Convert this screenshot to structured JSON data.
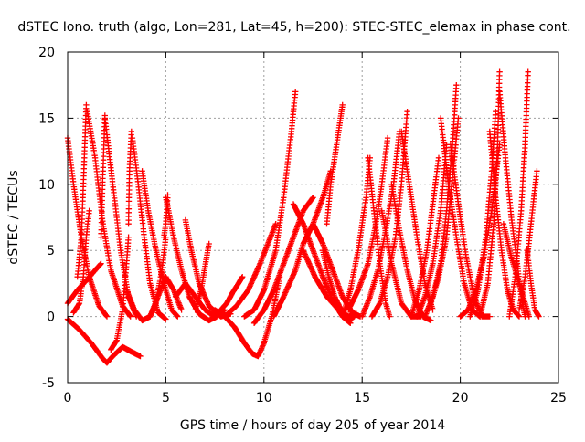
{
  "chart_data": {
    "type": "scatter",
    "title": "dSTEC Iono. truth (algo, Lon=281, Lat=45, h=200): STEC-STEC_elemax in phase cont.",
    "xlabel": "GPS time / hours of day 205 of year 2014",
    "ylabel": "dSTEC  / TECUs",
    "xlim": [
      0,
      25
    ],
    "ylim": [
      -5,
      20
    ],
    "xticks": [
      0,
      5,
      10,
      15,
      20,
      25
    ],
    "yticks": [
      -5,
      0,
      5,
      10,
      15,
      20
    ],
    "grid": true,
    "marker": "+",
    "colors": {
      "series": "#ff0000",
      "grid": "#a0a0a0",
      "axis": "#000000"
    },
    "series": [
      {
        "segments": [
          {
            "x": [
              0.0,
              0.3,
              0.7,
              1.1,
              1.6,
              2.0
            ],
            "y": [
              13.5,
              10.0,
              6.0,
              3.0,
              0.8,
              0.0
            ]
          },
          {
            "x": [
              0.0,
              0.6,
              1.2,
              1.8,
              2.0,
              2.3,
              2.8,
              3.3,
              3.7
            ],
            "y": [
              -0.2,
              -1.0,
              -2.0,
              -3.2,
              -3.5,
              -3.0,
              -2.3,
              -2.7,
              -3.0
            ]
          },
          {
            "x": [
              0.0,
              0.5,
              1.0,
              1.4,
              1.7
            ],
            "y": [
              1.0,
              2.0,
              2.8,
              3.5,
              4.0
            ]
          }
        ]
      },
      {
        "segments": [
          {
            "x": [
              0.3,
              0.6,
              0.8,
              0.95,
              1.1
            ],
            "y": [
              0.3,
              1.0,
              3.0,
              6.0,
              8.0
            ]
          },
          {
            "x": [
              0.5,
              0.7,
              0.85,
              0.95
            ],
            "y": [
              3.0,
              6.0,
              12.0,
              16.0
            ]
          },
          {
            "x": [
              1.0,
              1.4,
              1.8,
              2.2,
              2.8,
              3.2
            ],
            "y": [
              15.5,
              12.0,
              7.0,
              3.5,
              0.8,
              0.0
            ]
          },
          {
            "x": [
              1.7,
              1.8,
              1.9
            ],
            "y": [
              6.0,
              11.0,
              15.2
            ]
          },
          {
            "x": [
              1.9,
              2.3,
              2.7,
              3.1,
              3.5
            ],
            "y": [
              15.0,
              10.0,
              5.0,
              1.5,
              0.0
            ]
          }
        ]
      },
      {
        "segments": [
          {
            "x": [
              2.2,
              2.5,
              2.8,
              3.0,
              3.1
            ],
            "y": [
              -2.5,
              -1.8,
              0.5,
              4.0,
              6.0
            ]
          },
          {
            "x": [
              3.1,
              3.15,
              3.25
            ],
            "y": [
              7.0,
              11.0,
              14.0
            ]
          },
          {
            "x": [
              3.3,
              3.6,
              3.9,
              4.2,
              4.6,
              5.0
            ],
            "y": [
              13.5,
              10.0,
              6.0,
              2.5,
              0.3,
              -0.2
            ]
          },
          {
            "x": [
              3.8,
              4.1,
              4.5,
              4.9,
              5.3,
              5.6
            ],
            "y": [
              11.0,
              8.0,
              5.0,
              2.5,
              0.5,
              0.0
            ]
          },
          {
            "x": [
              3.0,
              3.4,
              3.8,
              4.2,
              4.6,
              5.0,
              5.4,
              5.8
            ],
            "y": [
              2.0,
              0.5,
              -0.3,
              0.0,
              1.5,
              3.0,
              2.0,
              0.5
            ]
          }
        ]
      },
      {
        "segments": [
          {
            "x": [
              4.2,
              4.5,
              4.8,
              5.0
            ],
            "y": [
              0.0,
              1.0,
              3.5,
              6.0
            ]
          },
          {
            "x": [
              4.9,
              5.0,
              5.1
            ],
            "y": [
              6.0,
              7.0,
              9.2
            ]
          },
          {
            "x": [
              5.0,
              5.4,
              5.8,
              6.2,
              6.7,
              7.2,
              7.6
            ],
            "y": [
              9.0,
              6.0,
              3.5,
              1.5,
              0.2,
              -0.3,
              0.0
            ]
          },
          {
            "x": [
              5.5,
              6.0,
              6.5,
              7.0,
              7.5,
              8.0
            ],
            "y": [
              1.5,
              2.5,
              1.5,
              0.5,
              0.0,
              0.5
            ]
          },
          {
            "x": [
              6.0,
              6.3,
              6.7,
              7.2,
              7.8,
              8.3
            ],
            "y": [
              7.3,
              5.0,
              2.5,
              0.8,
              0.0,
              0.2
            ]
          },
          {
            "x": [
              6.5,
              6.8,
              7.0,
              7.2
            ],
            "y": [
              0.5,
              2.0,
              3.8,
              5.5
            ]
          },
          {
            "x": [
              7.8,
              8.1,
              8.4,
              8.7,
              8.9
            ],
            "y": [
              0.5,
              1.0,
              1.8,
              2.5,
              3.0
            ]
          }
        ]
      },
      {
        "segments": [
          {
            "x": [
              7.5,
              8.0,
              8.5,
              9.0,
              9.4,
              9.7,
              10.0,
              10.4,
              10.8
            ],
            "y": [
              0.5,
              0.0,
              -0.8,
              -2.0,
              -2.8,
              -3.0,
              -2.0,
              0.0,
              3.0
            ]
          },
          {
            "x": [
              8.0,
              8.6,
              9.2,
              9.8,
              10.2,
              10.6
            ],
            "y": [
              0.0,
              0.8,
              2.0,
              4.0,
              5.5,
              7.0
            ]
          },
          {
            "x": [
              9.0,
              9.5,
              10.0,
              10.6,
              11.0,
              11.4,
              11.6
            ],
            "y": [
              0.0,
              0.5,
              2.0,
              5.0,
              9.0,
              14.0,
              17.0
            ]
          },
          {
            "x": [
              9.5,
              10.0,
              10.5,
              11.0,
              11.5,
              12.0,
              12.5
            ],
            "y": [
              -0.5,
              0.5,
              2.0,
              4.0,
              6.0,
              8.0,
              9.0
            ]
          },
          {
            "x": [
              10.5,
              11.0,
              11.6,
              12.0,
              12.5,
              13.0,
              13.4
            ],
            "y": [
              0.0,
              1.5,
              3.5,
              5.5,
              7.0,
              9.0,
              11.0
            ]
          }
        ]
      },
      {
        "segments": [
          {
            "x": [
              11.5,
              12.0,
              12.5,
              13.0,
              13.5,
              14.0,
              14.4
            ],
            "y": [
              8.5,
              7.0,
              5.0,
              3.0,
              1.2,
              0.0,
              -0.5
            ]
          },
          {
            "x": [
              12.0,
              12.6,
              13.2,
              13.8,
              14.3,
              14.7
            ],
            "y": [
              5.0,
              3.0,
              1.5,
              0.5,
              0.0,
              0.2
            ]
          },
          {
            "x": [
              12.5,
              13.0,
              13.5,
              14.0,
              14.5,
              14.9
            ],
            "y": [
              7.0,
              5.5,
              3.5,
              1.5,
              0.3,
              0.0
            ]
          },
          {
            "x": [
              13.0,
              13.3,
              13.6,
              14.0,
              14.3,
              14.6
            ],
            "y": [
              5.0,
              3.0,
              1.5,
              0.3,
              -0.3,
              0.0
            ]
          },
          {
            "x": [
              13.2,
              13.4,
              13.7,
              13.9,
              14.0
            ],
            "y": [
              7.0,
              10.0,
              13.0,
              15.0,
              16.0
            ]
          },
          {
            "x": [
              14.0,
              14.4,
              14.8,
              15.2,
              15.4
            ],
            "y": [
              0.0,
              2.0,
              5.0,
              9.0,
              12.0
            ]
          }
        ]
      },
      {
        "segments": [
          {
            "x": [
              14.3,
              14.8,
              15.3,
              15.7,
              16.0,
              16.3
            ],
            "y": [
              0.5,
              2.0,
              4.0,
              7.0,
              10.0,
              13.5
            ]
          },
          {
            "x": [
              15.0,
              15.4,
              15.8,
              16.2,
              16.6,
              16.9
            ],
            "y": [
              0.0,
              1.5,
              3.5,
              6.5,
              10.0,
              14.0
            ]
          },
          {
            "x": [
              15.5,
              15.9,
              16.3,
              16.7,
              17.0,
              17.3
            ],
            "y": [
              0.0,
              1.0,
              3.0,
              6.0,
              10.0,
              15.5
            ]
          },
          {
            "x": [
              15.3,
              15.6,
              15.9,
              16.2,
              16.4
            ],
            "y": [
              12.0,
              8.0,
              4.0,
              1.0,
              0.0
            ]
          },
          {
            "x": [
              16.0,
              16.5,
              17.0,
              17.5,
              18.0
            ],
            "y": [
              8.0,
              4.0,
              1.0,
              0.0,
              0.0
            ]
          },
          {
            "x": [
              16.5,
              16.9,
              17.3,
              17.7,
              18.1,
              18.5
            ],
            "y": [
              10.0,
              6.5,
              3.5,
              1.2,
              0.0,
              -0.3
            ]
          },
          {
            "x": [
              17.0,
              17.4,
              17.8,
              18.2,
              18.6
            ],
            "y": [
              14.0,
              10.0,
              6.0,
              2.5,
              0.5
            ]
          }
        ]
      },
      {
        "segments": [
          {
            "x": [
              17.5,
              17.9,
              18.3,
              18.6,
              18.9
            ],
            "y": [
              0.0,
              2.0,
              5.0,
              8.5,
              12.0
            ]
          },
          {
            "x": [
              17.8,
              18.2,
              18.6,
              19.0,
              19.3
            ],
            "y": [
              0.0,
              1.5,
              4.0,
              8.0,
              13.0
            ]
          },
          {
            "x": [
              18.2,
              18.6,
              19.0,
              19.3,
              19.6,
              19.8
            ],
            "y": [
              0.0,
              1.5,
              4.0,
              8.0,
              13.0,
              17.5
            ]
          },
          {
            "x": [
              18.5,
              18.9,
              19.3,
              19.6,
              19.9
            ],
            "y": [
              1.0,
              3.0,
              6.0,
              10.5,
              15.0
            ]
          },
          {
            "x": [
              19.0,
              19.4,
              19.8,
              20.2,
              20.6,
              21.0
            ],
            "y": [
              15.0,
              10.0,
              6.0,
              2.5,
              0.5,
              0.0
            ]
          },
          {
            "x": [
              19.5,
              19.9,
              20.3,
              20.7,
              21.1,
              21.5
            ],
            "y": [
              13.0,
              8.5,
              4.5,
              1.5,
              0.0,
              0.0
            ]
          },
          {
            "x": [
              20.0,
              20.4,
              20.8,
              21.2,
              21.6,
              22.0
            ],
            "y": [
              0.0,
              0.5,
              2.0,
              4.5,
              8.0,
              13.0
            ]
          }
        ]
      },
      {
        "segments": [
          {
            "x": [
              20.5,
              20.9,
              21.3,
              21.6,
              21.8
            ],
            "y": [
              0.0,
              2.0,
              6.0,
              11.0,
              15.5
            ]
          },
          {
            "x": [
              21.0,
              21.4,
              21.7,
              21.9,
              22.0
            ],
            "y": [
              0.0,
              2.5,
              7.0,
              13.0,
              18.5
            ]
          },
          {
            "x": [
              21.5,
              21.8,
              22.1,
              22.4,
              22.7,
              23.0
            ],
            "y": [
              14.0,
              9.0,
              5.0,
              2.0,
              0.5,
              0.0
            ]
          },
          {
            "x": [
              22.0,
              22.3,
              22.6,
              22.9,
              23.1,
              23.3
            ],
            "y": [
              17.0,
              12.0,
              7.5,
              4.0,
              1.5,
              0.0
            ]
          },
          {
            "x": [
              22.2,
              22.6,
              23.0,
              23.3,
              23.5
            ],
            "y": [
              7.0,
              4.5,
              2.5,
              1.0,
              0.0
            ]
          },
          {
            "x": [
              22.5,
              22.8,
              23.1,
              23.3,
              23.45
            ],
            "y": [
              0.0,
              3.0,
              8.0,
              13.0,
              18.5
            ]
          },
          {
            "x": [
              23.0,
              23.3,
              23.6,
              23.9
            ],
            "y": [
              0.5,
              3.0,
              7.0,
              11.0
            ]
          },
          {
            "x": [
              23.4,
              23.6,
              23.8,
              24.0
            ],
            "y": [
              5.0,
              2.5,
              0.5,
              0.0
            ]
          }
        ]
      }
    ]
  }
}
